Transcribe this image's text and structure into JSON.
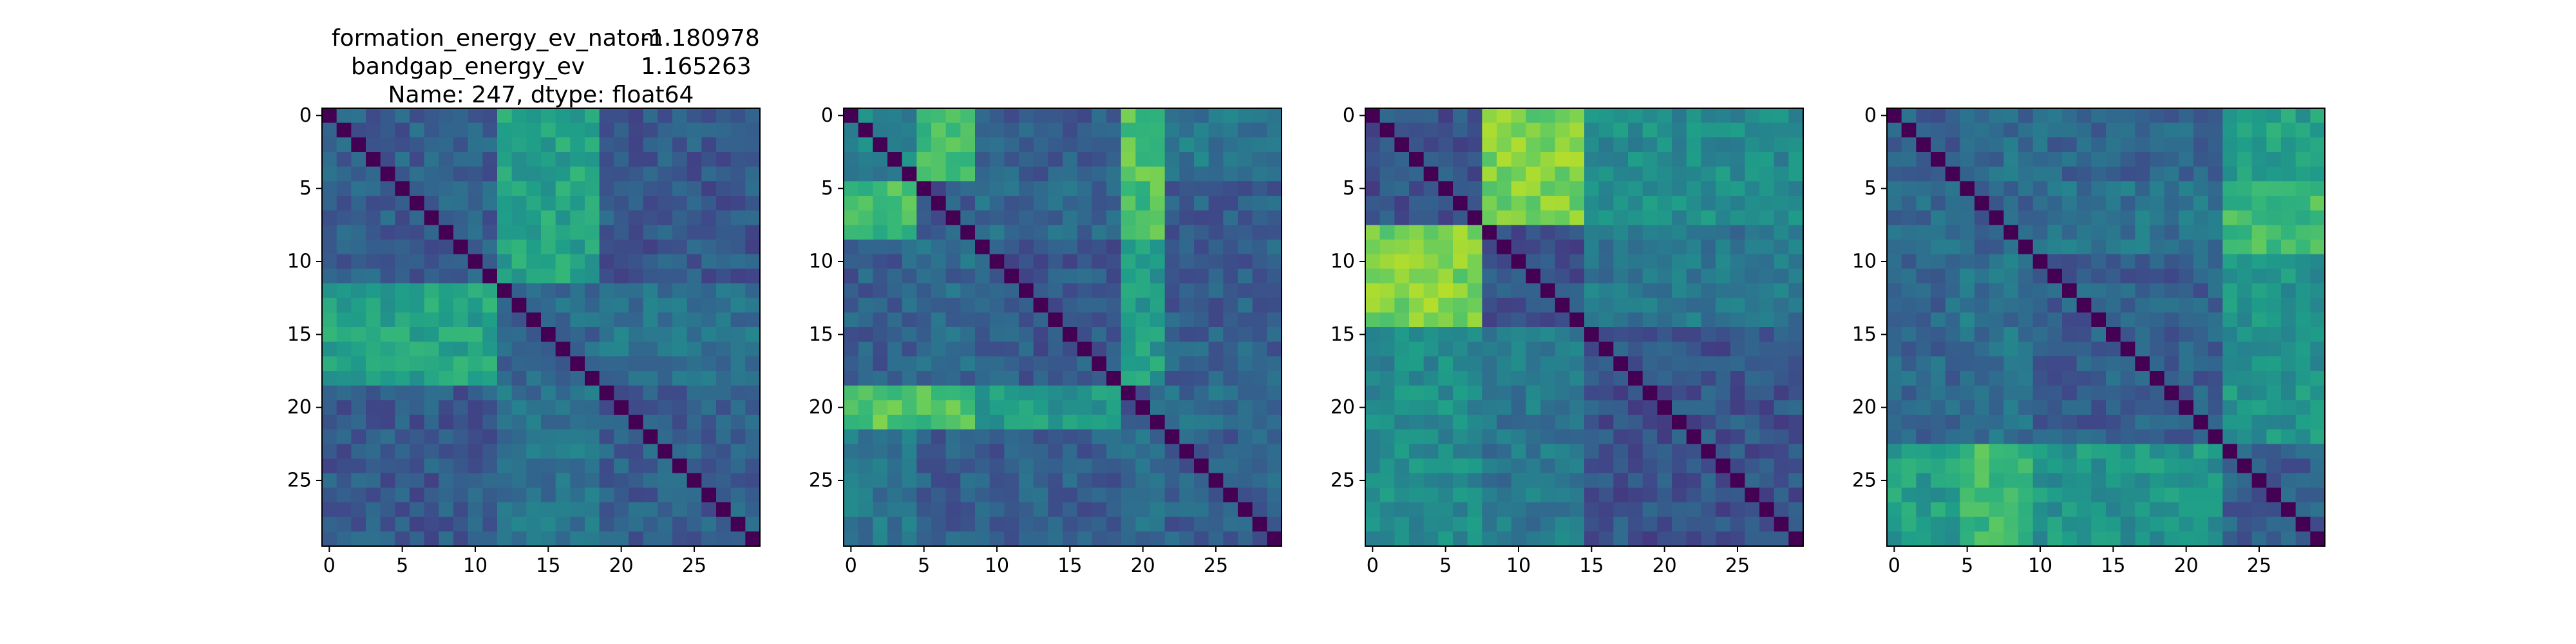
{
  "figure": {
    "title_lines": [
      {
        "key": "formation_energy_ev_natom",
        "value": "-1.180978"
      },
      {
        "key": "bandgap_energy_ev",
        "value": "1.165263"
      }
    ],
    "title_footer": "Name: 247, dtype: float64"
  },
  "chart_data": [
    {
      "type": "heatmap",
      "panel": 1,
      "title": "formation_energy_ev_natom   -1.180978\nbandgap_energy_ev           1.165263\nName: 247, dtype: float64",
      "colormap": "viridis",
      "value_range": [
        0,
        1
      ],
      "size": 30,
      "y_ticks": [
        "0",
        "5",
        "10",
        "15",
        "20",
        "25"
      ],
      "x_ticks": [
        "0",
        "5",
        "10",
        "15",
        "20",
        "25"
      ],
      "blocks": [
        [
          0,
          12
        ],
        [
          12,
          19
        ],
        [
          19,
          30
        ]
      ],
      "block_means": [
        [
          0.3,
          0.58,
          0.28
        ],
        [
          0.58,
          0.34,
          0.38
        ],
        [
          0.28,
          0.38,
          0.3
        ]
      ]
    },
    {
      "type": "heatmap",
      "panel": 2,
      "title": "",
      "colormap": "viridis",
      "value_range": [
        0,
        1
      ],
      "size": 30,
      "y_ticks": [
        "0",
        "5",
        "10",
        "15",
        "20",
        "25"
      ],
      "x_ticks": [
        "0",
        "5",
        "10",
        "15",
        "20",
        "25"
      ],
      "blocks": [
        [
          0,
          5
        ],
        [
          5,
          9
        ],
        [
          9,
          19
        ],
        [
          19,
          22
        ],
        [
          22,
          30
        ]
      ],
      "block_means": [
        [
          0.45,
          0.68,
          0.3,
          0.72,
          0.4
        ],
        [
          0.68,
          0.28,
          0.34,
          0.7,
          0.3
        ],
        [
          0.3,
          0.34,
          0.28,
          0.55,
          0.3
        ],
        [
          0.72,
          0.7,
          0.55,
          0.3,
          0.35
        ],
        [
          0.4,
          0.3,
          0.3,
          0.35,
          0.3
        ]
      ]
    },
    {
      "type": "heatmap",
      "panel": 3,
      "title": "",
      "colormap": "viridis",
      "value_range": [
        0,
        1
      ],
      "size": 30,
      "y_ticks": [
        "0",
        "5",
        "10",
        "15",
        "20",
        "25"
      ],
      "x_ticks": [
        "0",
        "5",
        "10",
        "15",
        "20",
        "25"
      ],
      "blocks": [
        [
          0,
          8
        ],
        [
          8,
          15
        ],
        [
          15,
          30
        ]
      ],
      "block_means": [
        [
          0.26,
          0.8,
          0.48
        ],
        [
          0.8,
          0.26,
          0.4
        ],
        [
          0.48,
          0.4,
          0.26
        ]
      ]
    },
    {
      "type": "heatmap",
      "panel": 4,
      "title": "",
      "colormap": "viridis",
      "value_range": [
        0,
        1
      ],
      "size": 30,
      "y_ticks": [
        "0",
        "5",
        "10",
        "15",
        "20",
        "25"
      ],
      "x_ticks": [
        "0",
        "5",
        "10",
        "15",
        "20",
        "25"
      ],
      "blocks": [
        [
          0,
          5
        ],
        [
          5,
          10
        ],
        [
          10,
          23
        ],
        [
          23,
          30
        ]
      ],
      "block_means": [
        [
          0.3,
          0.36,
          0.33,
          0.56
        ],
        [
          0.36,
          0.33,
          0.38,
          0.68
        ],
        [
          0.33,
          0.38,
          0.3,
          0.52
        ],
        [
          0.56,
          0.68,
          0.52,
          0.3
        ]
      ]
    }
  ]
}
